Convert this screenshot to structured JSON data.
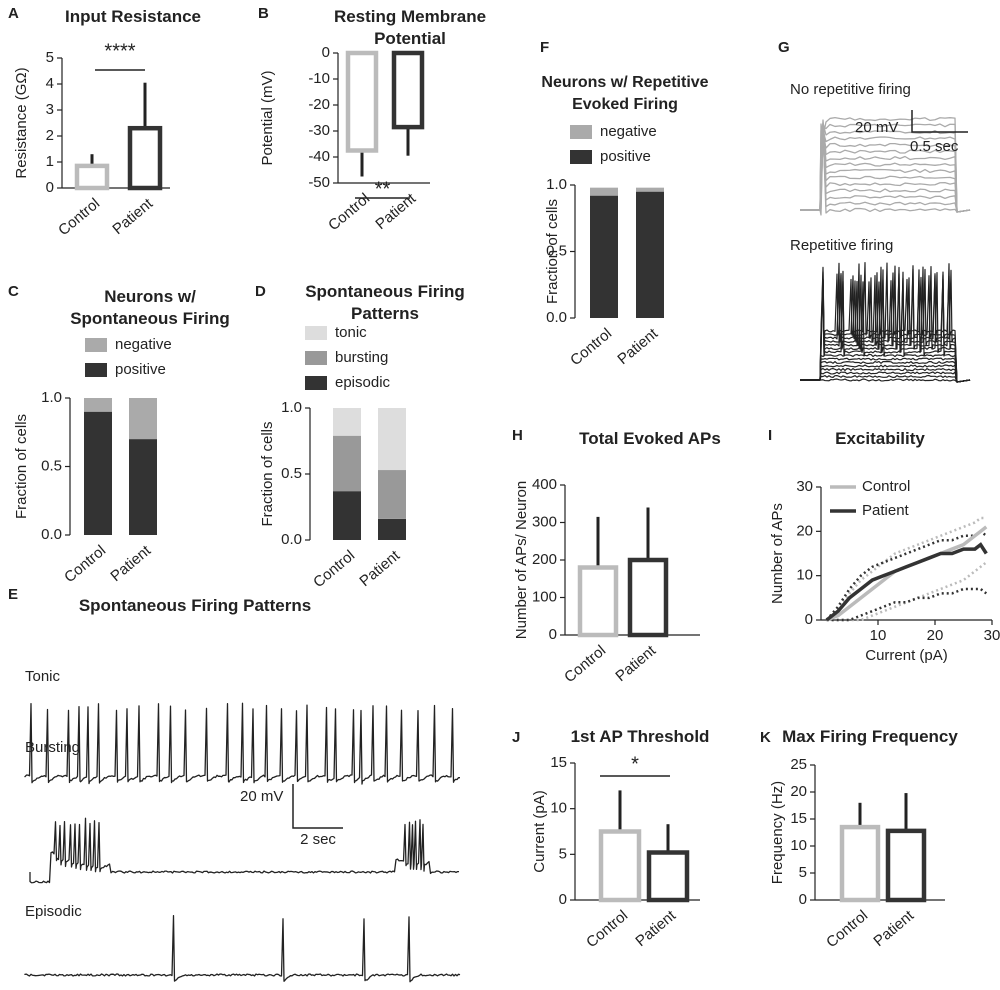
{
  "chart_data": [
    {
      "panel": "A",
      "type": "bar",
      "title": "Input Resistance",
      "ylabel": "Resistance (GΩ)",
      "categories": [
        "Control",
        "Patient"
      ],
      "values": [
        0.85,
        2.3
      ],
      "errors": [
        0.45,
        1.75
      ],
      "colors": [
        "#bbbbbb",
        "#333333"
      ],
      "ylim": [
        0,
        5
      ],
      "yticks": [
        0,
        1,
        2,
        3,
        4,
        5
      ],
      "annotation": "****"
    },
    {
      "panel": "B",
      "type": "bar",
      "title": "Resting Membrane Potential",
      "ylabel": "Potential (mV)",
      "categories": [
        "Control",
        "Patient"
      ],
      "values": [
        -37.5,
        -28.5
      ],
      "errors": [
        10,
        11
      ],
      "colors": [
        "#bbbbbb",
        "#333333"
      ],
      "ylim": [
        -50,
        0
      ],
      "yticks": [
        0,
        -10,
        -20,
        -30,
        -40,
        -50
      ],
      "annotation": "**"
    },
    {
      "panel": "C",
      "type": "stacked_bar",
      "title": "Neurons w/ Spontaneous Firing",
      "ylabel": "Fraction of cells",
      "categories": [
        "Control",
        "Patient"
      ],
      "series": [
        {
          "name": "positive",
          "color": "#333333",
          "values": [
            0.9,
            0.7
          ]
        },
        {
          "name": "negative",
          "color": "#aaaaaa",
          "values": [
            0.1,
            0.3
          ]
        }
      ],
      "ylim": [
        0,
        1
      ],
      "yticks": [
        {
          "value": 0,
          "label": "0.0"
        },
        0.5,
        {
          "value": 1,
          "label": "1.0"
        }
      ]
    },
    {
      "panel": "D",
      "type": "stacked_bar",
      "title": "Spontaneous Firing Patterns",
      "ylabel": "Fraction of cells",
      "categories": [
        "Control",
        "Patient"
      ],
      "series": [
        {
          "name": "episodic",
          "color": "#333333",
          "values": [
            0.37,
            0.16
          ]
        },
        {
          "name": "bursting",
          "color": "#999999",
          "values": [
            0.42,
            0.37
          ]
        },
        {
          "name": "tonic",
          "color": "#dddddd",
          "values": [
            0.21,
            0.47
          ]
        }
      ],
      "ylim": [
        0,
        1
      ],
      "yticks": [
        {
          "value": 0,
          "label": "0.0"
        },
        0.5,
        {
          "value": 1,
          "label": "1.0"
        }
      ]
    },
    {
      "panel": "E",
      "type": "traces",
      "title": "Spontaneous Firing Patterns",
      "labels": [
        "Tonic",
        "Bursting",
        "Episodic"
      ],
      "scale_labels": [
        "20 mV",
        "2 sec"
      ]
    },
    {
      "panel": "F",
      "type": "stacked_bar",
      "title": "Neurons w/ Repetitive Evoked Firing",
      "ylabel": "Fraction of cells",
      "categories": [
        "Control",
        "Patient"
      ],
      "series": [
        {
          "name": "positive",
          "color": "#333333",
          "values": [
            0.92,
            0.95
          ]
        },
        {
          "name": "negative",
          "color": "#aaaaaa",
          "values": [
            0.06,
            0.03
          ]
        }
      ],
      "ylim": [
        0,
        1
      ],
      "yticks": [
        {
          "value": 0,
          "label": "0.0"
        },
        0.5,
        {
          "value": 1,
          "label": "1.0"
        }
      ]
    },
    {
      "panel": "G",
      "type": "traces",
      "labels": [
        "No repetitive firing",
        "Repetitive firing"
      ],
      "scale_labels": [
        "20 mV",
        "0.5 sec"
      ]
    },
    {
      "panel": "H",
      "type": "bar",
      "title": "Total Evoked APs",
      "ylabel": "Number of APs/ Neuron",
      "categories": [
        "Control",
        "Patient"
      ],
      "values": [
        180,
        200
      ],
      "errors": [
        135,
        140
      ],
      "colors": [
        "#bbbbbb",
        "#333333"
      ],
      "ylim": [
        0,
        400
      ],
      "yticks": [
        0,
        100,
        200,
        300,
        400
      ]
    },
    {
      "panel": "I",
      "type": "line",
      "title": "Excitability",
      "xlabel": "Current (pA)",
      "ylabel": "Number of APs",
      "x": [
        1,
        3,
        5,
        7,
        9,
        11,
        13,
        15,
        17,
        19,
        21,
        23,
        25,
        27,
        28,
        29
      ],
      "series": [
        {
          "name": "Control",
          "color": "#bbbbbb",
          "values": [
            0,
            1,
            3,
            5,
            7,
            9,
            11,
            12,
            13,
            14,
            15,
            16,
            17,
            19,
            20,
            21
          ],
          "upper": [
            0,
            2,
            6,
            9,
            11,
            13,
            15,
            16,
            17,
            18,
            19,
            20,
            21,
            22,
            23,
            23
          ],
          "lower": [
            0,
            0,
            0,
            0,
            1,
            2,
            3,
            4,
            5,
            6,
            7,
            8,
            9,
            11,
            12,
            13
          ]
        },
        {
          "name": "Patient",
          "color": "#333333",
          "values": [
            0,
            2,
            5,
            7,
            9,
            10,
            11,
            12,
            13,
            14,
            15,
            15,
            16,
            16,
            17,
            15
          ],
          "upper": [
            0,
            3,
            7,
            10,
            12,
            13,
            14,
            15,
            16,
            17,
            18,
            18,
            19,
            19,
            20,
            19
          ],
          "lower": [
            0,
            0,
            0,
            1,
            2,
            3,
            4,
            4,
            5,
            5,
            6,
            6,
            7,
            7,
            7,
            6
          ]
        }
      ],
      "xlim": [
        0,
        30
      ],
      "xticks": [
        10,
        20,
        30
      ],
      "ylim": [
        0,
        30
      ],
      "yticks": [
        0,
        10,
        20,
        30
      ]
    },
    {
      "panel": "J",
      "type": "bar",
      "title": "1st AP Threshold",
      "ylabel": "Current (pA)",
      "categories": [
        "Control",
        "Patient"
      ],
      "values": [
        7.5,
        5.2
      ],
      "errors": [
        4.5,
        3.1
      ],
      "colors": [
        "#bbbbbb",
        "#333333"
      ],
      "ylim": [
        0,
        15
      ],
      "yticks": [
        0,
        5,
        10,
        15
      ],
      "annotation": "*"
    },
    {
      "panel": "K",
      "type": "bar",
      "title": "Max Firing Frequency",
      "ylabel": "Frequency (Hz)",
      "categories": [
        "Control",
        "Patient"
      ],
      "values": [
        13.5,
        12.8
      ],
      "errors": [
        4.5,
        7
      ],
      "colors": [
        "#bbbbbb",
        "#333333"
      ],
      "ylim": [
        0,
        25
      ],
      "yticks": [
        0,
        5,
        10,
        15,
        20,
        25
      ]
    }
  ]
}
